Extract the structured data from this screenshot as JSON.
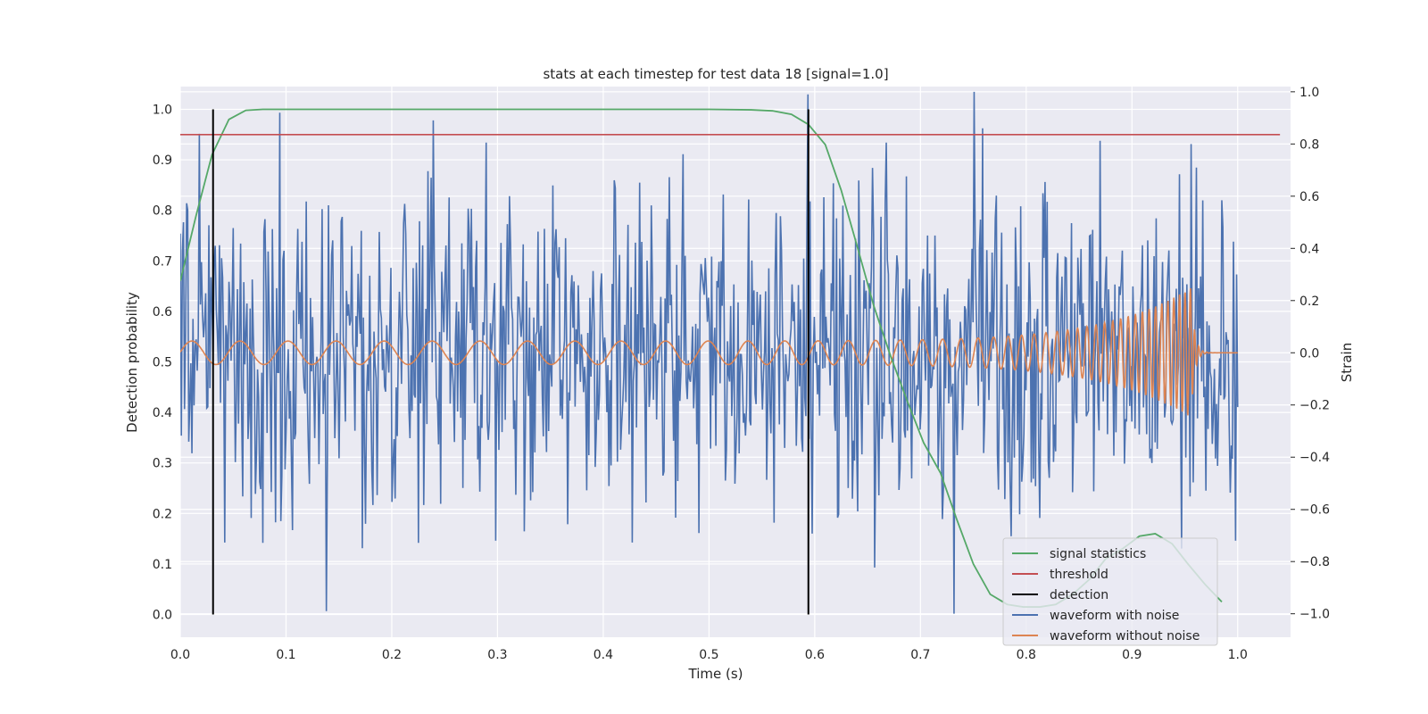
{
  "chart_data": {
    "type": "line",
    "title": "stats at each timestep for test data 18 [signal=1.0]",
    "xlabel": "Time (s)",
    "ylabel": "Detection probability",
    "ylabel_right": "Strain",
    "xlim": [
      0.0,
      1.05
    ],
    "ylim": [
      -0.045,
      1.045
    ],
    "ylim_right": [
      -1.09,
      1.02
    ],
    "grid": true,
    "legend_position": "lower-right",
    "x_ticks": [
      "0.0",
      "0.1",
      "0.2",
      "0.3",
      "0.4",
      "0.5",
      "0.6",
      "0.7",
      "0.8",
      "0.9",
      "1.0"
    ],
    "y_ticks": [
      "0.0",
      "0.1",
      "0.2",
      "0.3",
      "0.4",
      "0.5",
      "0.6",
      "0.7",
      "0.8",
      "0.9",
      "1.0"
    ],
    "y_ticks_right": [
      "−1.0",
      "−0.8",
      "−0.6",
      "−0.4",
      "−0.2",
      "0.0",
      "0.2",
      "0.4",
      "0.6",
      "0.8",
      "1.0"
    ],
    "legend": [
      {
        "name": "signal statistics",
        "color": "#55a868"
      },
      {
        "name": "threshold",
        "color": "#c44e52"
      },
      {
        "name": "detection",
        "color": "#000000"
      },
      {
        "name": "waveform with noise",
        "color": "#4c72b0"
      },
      {
        "name": "waveform without noise",
        "color": "#dd8452"
      }
    ],
    "signal_statistics": {
      "color": "#55a868",
      "x": [
        0.0,
        0.015,
        0.03,
        0.046,
        0.062,
        0.078,
        0.1,
        0.2,
        0.3,
        0.4,
        0.5,
        0.54,
        0.56,
        0.578,
        0.594,
        0.61,
        0.625,
        0.64,
        0.656,
        0.672,
        0.688,
        0.703,
        0.719,
        0.734,
        0.75,
        0.766,
        0.782,
        0.797,
        0.813,
        0.828,
        0.844,
        0.86,
        0.875,
        0.891,
        0.907,
        0.922,
        0.938,
        0.953,
        0.969,
        0.985
      ],
      "y": [
        0.66,
        0.79,
        0.91,
        0.98,
        0.998,
        1.0,
        1.0,
        1.0,
        1.0,
        1.0,
        1.0,
        0.999,
        0.997,
        0.99,
        0.97,
        0.93,
        0.84,
        0.73,
        0.61,
        0.51,
        0.42,
        0.34,
        0.28,
        0.19,
        0.1,
        0.04,
        0.02,
        0.015,
        0.015,
        0.02,
        0.04,
        0.07,
        0.11,
        0.13,
        0.155,
        0.16,
        0.14,
        0.1,
        0.06,
        0.025
      ]
    },
    "threshold": {
      "color": "#c44e52",
      "value": 0.95
    },
    "detection": {
      "color": "#000000",
      "x": [
        0.031,
        0.594
      ],
      "y_range": [
        0.0,
        1.0
      ]
    },
    "waveform_with_noise": {
      "color": "#4c72b0",
      "axis": "right",
      "x_range": [
        0.0,
        1.0
      ],
      "noise_amplitude": 0.32,
      "points": 1000,
      "spikes": [
        {
          "x": 0.003,
          "y": 0.5
        },
        {
          "x": 0.138,
          "y": -0.99
        },
        {
          "x": 0.298,
          "y": -0.72
        },
        {
          "x": 0.594,
          "y": 0.99
        },
        {
          "x": 0.732,
          "y": -1.0
        },
        {
          "x": 0.751,
          "y": 1.0
        },
        {
          "x": 0.956,
          "y": 0.8
        },
        {
          "x": 0.947,
          "y": -0.75
        },
        {
          "x": 0.998,
          "y": -0.72
        },
        {
          "x": 0.999,
          "y": 0.3
        }
      ]
    },
    "waveform_without_noise": {
      "color": "#dd8452",
      "axis": "right",
      "x_range": [
        0.0,
        1.0
      ],
      "cycles": [
        22,
        200
      ],
      "amplitude_start": 0.045,
      "amplitude_peak": 0.25,
      "merger_time": 0.956
    }
  }
}
